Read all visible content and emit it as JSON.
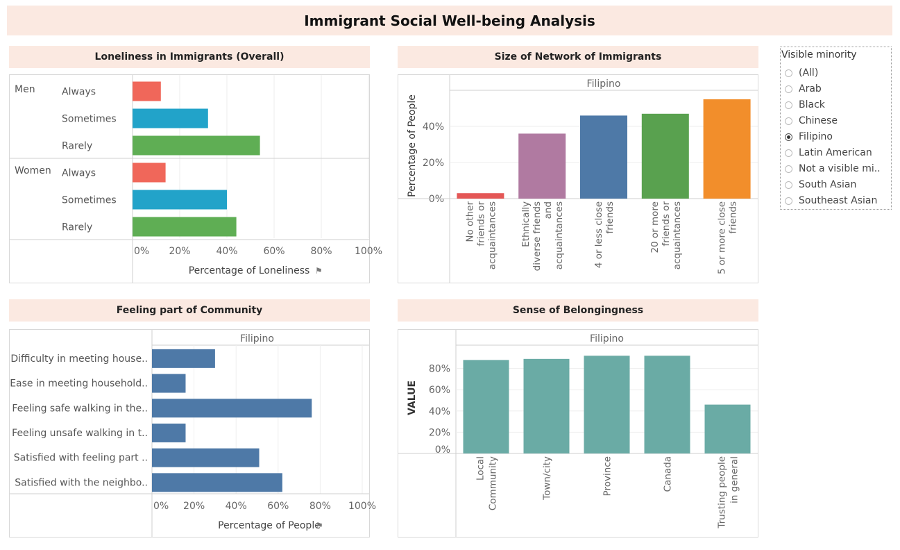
{
  "dashboard": {
    "title": "Immigrant Social Well-being Analysis"
  },
  "filter": {
    "title": "Visible minority",
    "options": [
      "(All)",
      "Arab",
      "Black",
      "Chinese",
      "Filipino",
      "Latin American",
      "Not a visible mi..",
      "South Asian",
      "Southeast Asian"
    ],
    "selected": "Filipino"
  },
  "panels": {
    "loneliness": {
      "title": "Loneliness in Immigrants (Overall)"
    },
    "network": {
      "title": "Size of Network of Immigrants"
    },
    "community": {
      "title": "Feeling part of Community"
    },
    "belonging": {
      "title": "Sense of Belongingness"
    }
  },
  "colors": {
    "always": "#f0675a",
    "sometimes": "#22a3c9",
    "rarely": "#5fae54",
    "steel": "#4e79a7",
    "teal": "#6aaba5",
    "red": "#e45756",
    "purple": "#b07aa1",
    "blue": "#4e79a7",
    "green": "#59a14f",
    "orange": "#f28e2b"
  },
  "chart_data": [
    {
      "type": "bar",
      "orientation": "horizontal",
      "groups": [
        {
          "name": "Men",
          "rows": [
            {
              "label": "Always",
              "value": 12,
              "color_key": "always"
            },
            {
              "label": "Sometimes",
              "value": 32,
              "color_key": "sometimes"
            },
            {
              "label": "Rarely",
              "value": 54,
              "color_key": "rarely"
            }
          ]
        },
        {
          "name": "Women",
          "rows": [
            {
              "label": "Always",
              "value": 14,
              "color_key": "always"
            },
            {
              "label": "Sometimes",
              "value": 40,
              "color_key": "sometimes"
            },
            {
              "label": "Rarely",
              "value": 44,
              "color_key": "rarely"
            }
          ]
        }
      ],
      "xlim": [
        0,
        100
      ],
      "xticks": [
        "0%",
        "20%",
        "40%",
        "60%",
        "80%",
        "100%"
      ],
      "xlabel": "Percentage of Loneliness"
    },
    {
      "type": "bar",
      "header": "Filipino",
      "categories": [
        "No other friends or acquaintances",
        "Ethnically diverse friends and acquaintances",
        "4 or less close friends",
        "20 or more friends or acquaintances",
        "5 or more close friends"
      ],
      "category_lines": [
        [
          "No other",
          "friends or",
          "acquaintances"
        ],
        [
          "Ethnically",
          "diverse friends",
          "and",
          "acquaintances"
        ],
        [
          "4 or less close",
          "friends"
        ],
        [
          "20 or more",
          "friends or",
          "acquaintances"
        ],
        [
          "5 or more close",
          "friends"
        ]
      ],
      "values": [
        3,
        36,
        46,
        47,
        55
      ],
      "color_keys": [
        "red",
        "purple",
        "blue",
        "green",
        "orange"
      ],
      "ylabel": "Percentage of People",
      "yticks": [
        0,
        20,
        40
      ],
      "ytick_labels": [
        "0%",
        "20%",
        "40%"
      ],
      "ylim": [
        0,
        60
      ]
    },
    {
      "type": "bar",
      "orientation": "horizontal",
      "header": "Filipino",
      "categories": [
        "Difficulty in meeting house..",
        "Ease in meeting household..",
        "Feeling safe walking in the..",
        "Feeling unsafe walking in t..",
        "Satisfied with feeling part ..",
        "Satisfied with the neighbo.."
      ],
      "values": [
        30,
        16,
        76,
        16,
        51,
        62
      ],
      "xlim": [
        0,
        100
      ],
      "xticks": [
        "0%",
        "20%",
        "40%",
        "60%",
        "80%",
        "100%"
      ],
      "xlabel": "Percentage of People"
    },
    {
      "type": "bar",
      "header": "Filipino",
      "categories": [
        "Local Community",
        "Town/city",
        "Province",
        "Canada",
        "Trusting people in general"
      ],
      "category_lines": [
        [
          "Local",
          "Community"
        ],
        [
          "Town/city"
        ],
        [
          "Province"
        ],
        [
          "Canada"
        ],
        [
          "Trusting people",
          "in general"
        ]
      ],
      "values": [
        88,
        89,
        92,
        92,
        46
      ],
      "ylabel": "VALUE",
      "yticks": [
        0,
        20,
        40,
        60,
        80
      ],
      "ytick_labels": [
        "0%",
        "20%",
        "40%",
        "60%",
        "80%"
      ],
      "ylim": [
        0,
        100
      ]
    }
  ]
}
